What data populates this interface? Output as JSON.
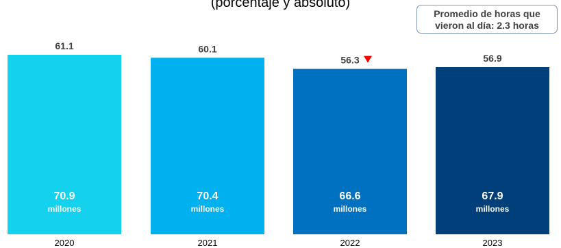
{
  "subtitle": "(porcentaje y absoluto)",
  "note": {
    "line1": "Promedio de horas que",
    "line2": "vieron al día: 2.3 horas"
  },
  "chart_data": {
    "type": "bar",
    "subtitle": "(porcentaje y absoluto)",
    "categories": [
      "2020",
      "2021",
      "2022",
      "2023"
    ],
    "percent_labels": [
      "61.1",
      "60.1",
      "56.3",
      "56.9"
    ],
    "values": [
      61.1,
      60.1,
      56.3,
      56.9
    ],
    "absolute_values": [
      "70.9",
      "70.4",
      "66.6",
      "67.9"
    ],
    "absolute_unit": "millones",
    "decrease_marker_index": 2,
    "bar_colors": [
      "#14d1ee",
      "#00b0ef",
      "#0070c0",
      "#003f7a"
    ],
    "marker_color": "#ff0000",
    "ylim": [
      0,
      61.1
    ]
  }
}
